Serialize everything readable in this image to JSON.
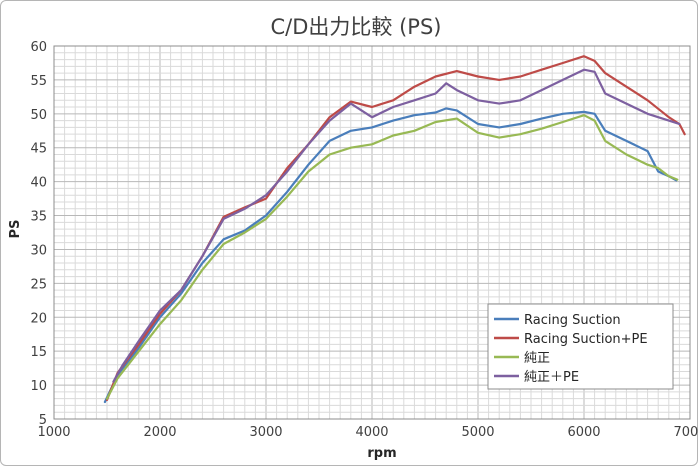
{
  "chart_data": {
    "type": "line",
    "title": "C/D出力比較 (PS)",
    "xlabel": "rpm",
    "ylabel": "PS",
    "xlim": [
      1000,
      7000
    ],
    "ylim": [
      5,
      60
    ],
    "xticks": [
      1000,
      2000,
      3000,
      4000,
      5000,
      6000,
      7000
    ],
    "yticks": [
      5,
      10,
      15,
      20,
      25,
      30,
      35,
      40,
      45,
      50,
      55,
      60
    ],
    "grid": true,
    "legend_position": "bottom-right",
    "series": [
      {
        "name": "Racing Suction",
        "color": "#4a7ebb",
        "x": [
          1480,
          1600,
          1800,
          2000,
          2200,
          2400,
          2600,
          2800,
          3000,
          3200,
          3400,
          3600,
          3800,
          4000,
          4200,
          4400,
          4600,
          4700,
          4800,
          5000,
          5200,
          5400,
          5600,
          5800,
          6000,
          6100,
          6200,
          6400,
          6600,
          6700,
          6800,
          6870
        ],
        "y": [
          7.5,
          11.5,
          15.5,
          20,
          23.5,
          28,
          31.5,
          32.8,
          35,
          38.5,
          42.5,
          46,
          47.5,
          48,
          49,
          49.8,
          50.2,
          50.8,
          50.5,
          48.5,
          48,
          48.5,
          49.3,
          50,
          50.3,
          50,
          47.5,
          46,
          44.5,
          41.5,
          40.8,
          40.2
        ]
      },
      {
        "name": "Racing Suction+PE",
        "color": "#be4b48",
        "x": [
          1500,
          1600,
          1800,
          2000,
          2200,
          2400,
          2600,
          2800,
          3000,
          3200,
          3400,
          3600,
          3800,
          4000,
          4200,
          4400,
          4600,
          4800,
          5000,
          5200,
          5400,
          5600,
          5800,
          6000,
          6100,
          6200,
          6400,
          6600,
          6800,
          6900,
          6950
        ],
        "y": [
          7.8,
          11.8,
          16,
          20.5,
          24,
          29,
          34.8,
          36.2,
          37.5,
          42,
          45.5,
          49.5,
          51.8,
          51,
          52,
          54,
          55.5,
          56.3,
          55.5,
          55,
          55.5,
          56.5,
          57.5,
          58.5,
          57.8,
          56,
          54,
          52,
          49.5,
          48.5,
          47
        ]
      },
      {
        "name": "純正",
        "color": "#98b954",
        "x": [
          1500,
          1600,
          1800,
          2000,
          2200,
          2400,
          2600,
          2800,
          3000,
          3200,
          3400,
          3600,
          3800,
          4000,
          4200,
          4400,
          4600,
          4800,
          5000,
          5200,
          5400,
          5600,
          5800,
          6000,
          6100,
          6200,
          6400,
          6600,
          6700,
          6800,
          6880
        ],
        "y": [
          8,
          11,
          15,
          19,
          22.5,
          27,
          30.8,
          32.5,
          34.5,
          37.8,
          41.5,
          44,
          45,
          45.5,
          46.8,
          47.5,
          48.8,
          49.3,
          47.2,
          46.5,
          47,
          47.8,
          48.8,
          49.8,
          49,
          46,
          44,
          42.5,
          42,
          40.8,
          40.3
        ]
      },
      {
        "name": "純正＋PE",
        "color": "#7d60a0",
        "x": [
          1560,
          1650,
          1800,
          2000,
          2200,
          2400,
          2600,
          2800,
          3000,
          3200,
          3400,
          3600,
          3800,
          4000,
          4200,
          4400,
          4600,
          4700,
          4800,
          5000,
          5200,
          5400,
          5600,
          5800,
          6000,
          6100,
          6200,
          6400,
          6600,
          6800,
          6900
        ],
        "y": [
          10.5,
          13,
          16.5,
          21,
          24,
          29,
          34.5,
          36,
          38,
          41.5,
          45.5,
          49,
          51.5,
          49.5,
          51,
          52,
          53,
          54.5,
          53.5,
          52,
          51.5,
          52,
          53.5,
          55,
          56.5,
          56.2,
          53,
          51.5,
          50,
          49,
          48.5
        ]
      }
    ]
  }
}
